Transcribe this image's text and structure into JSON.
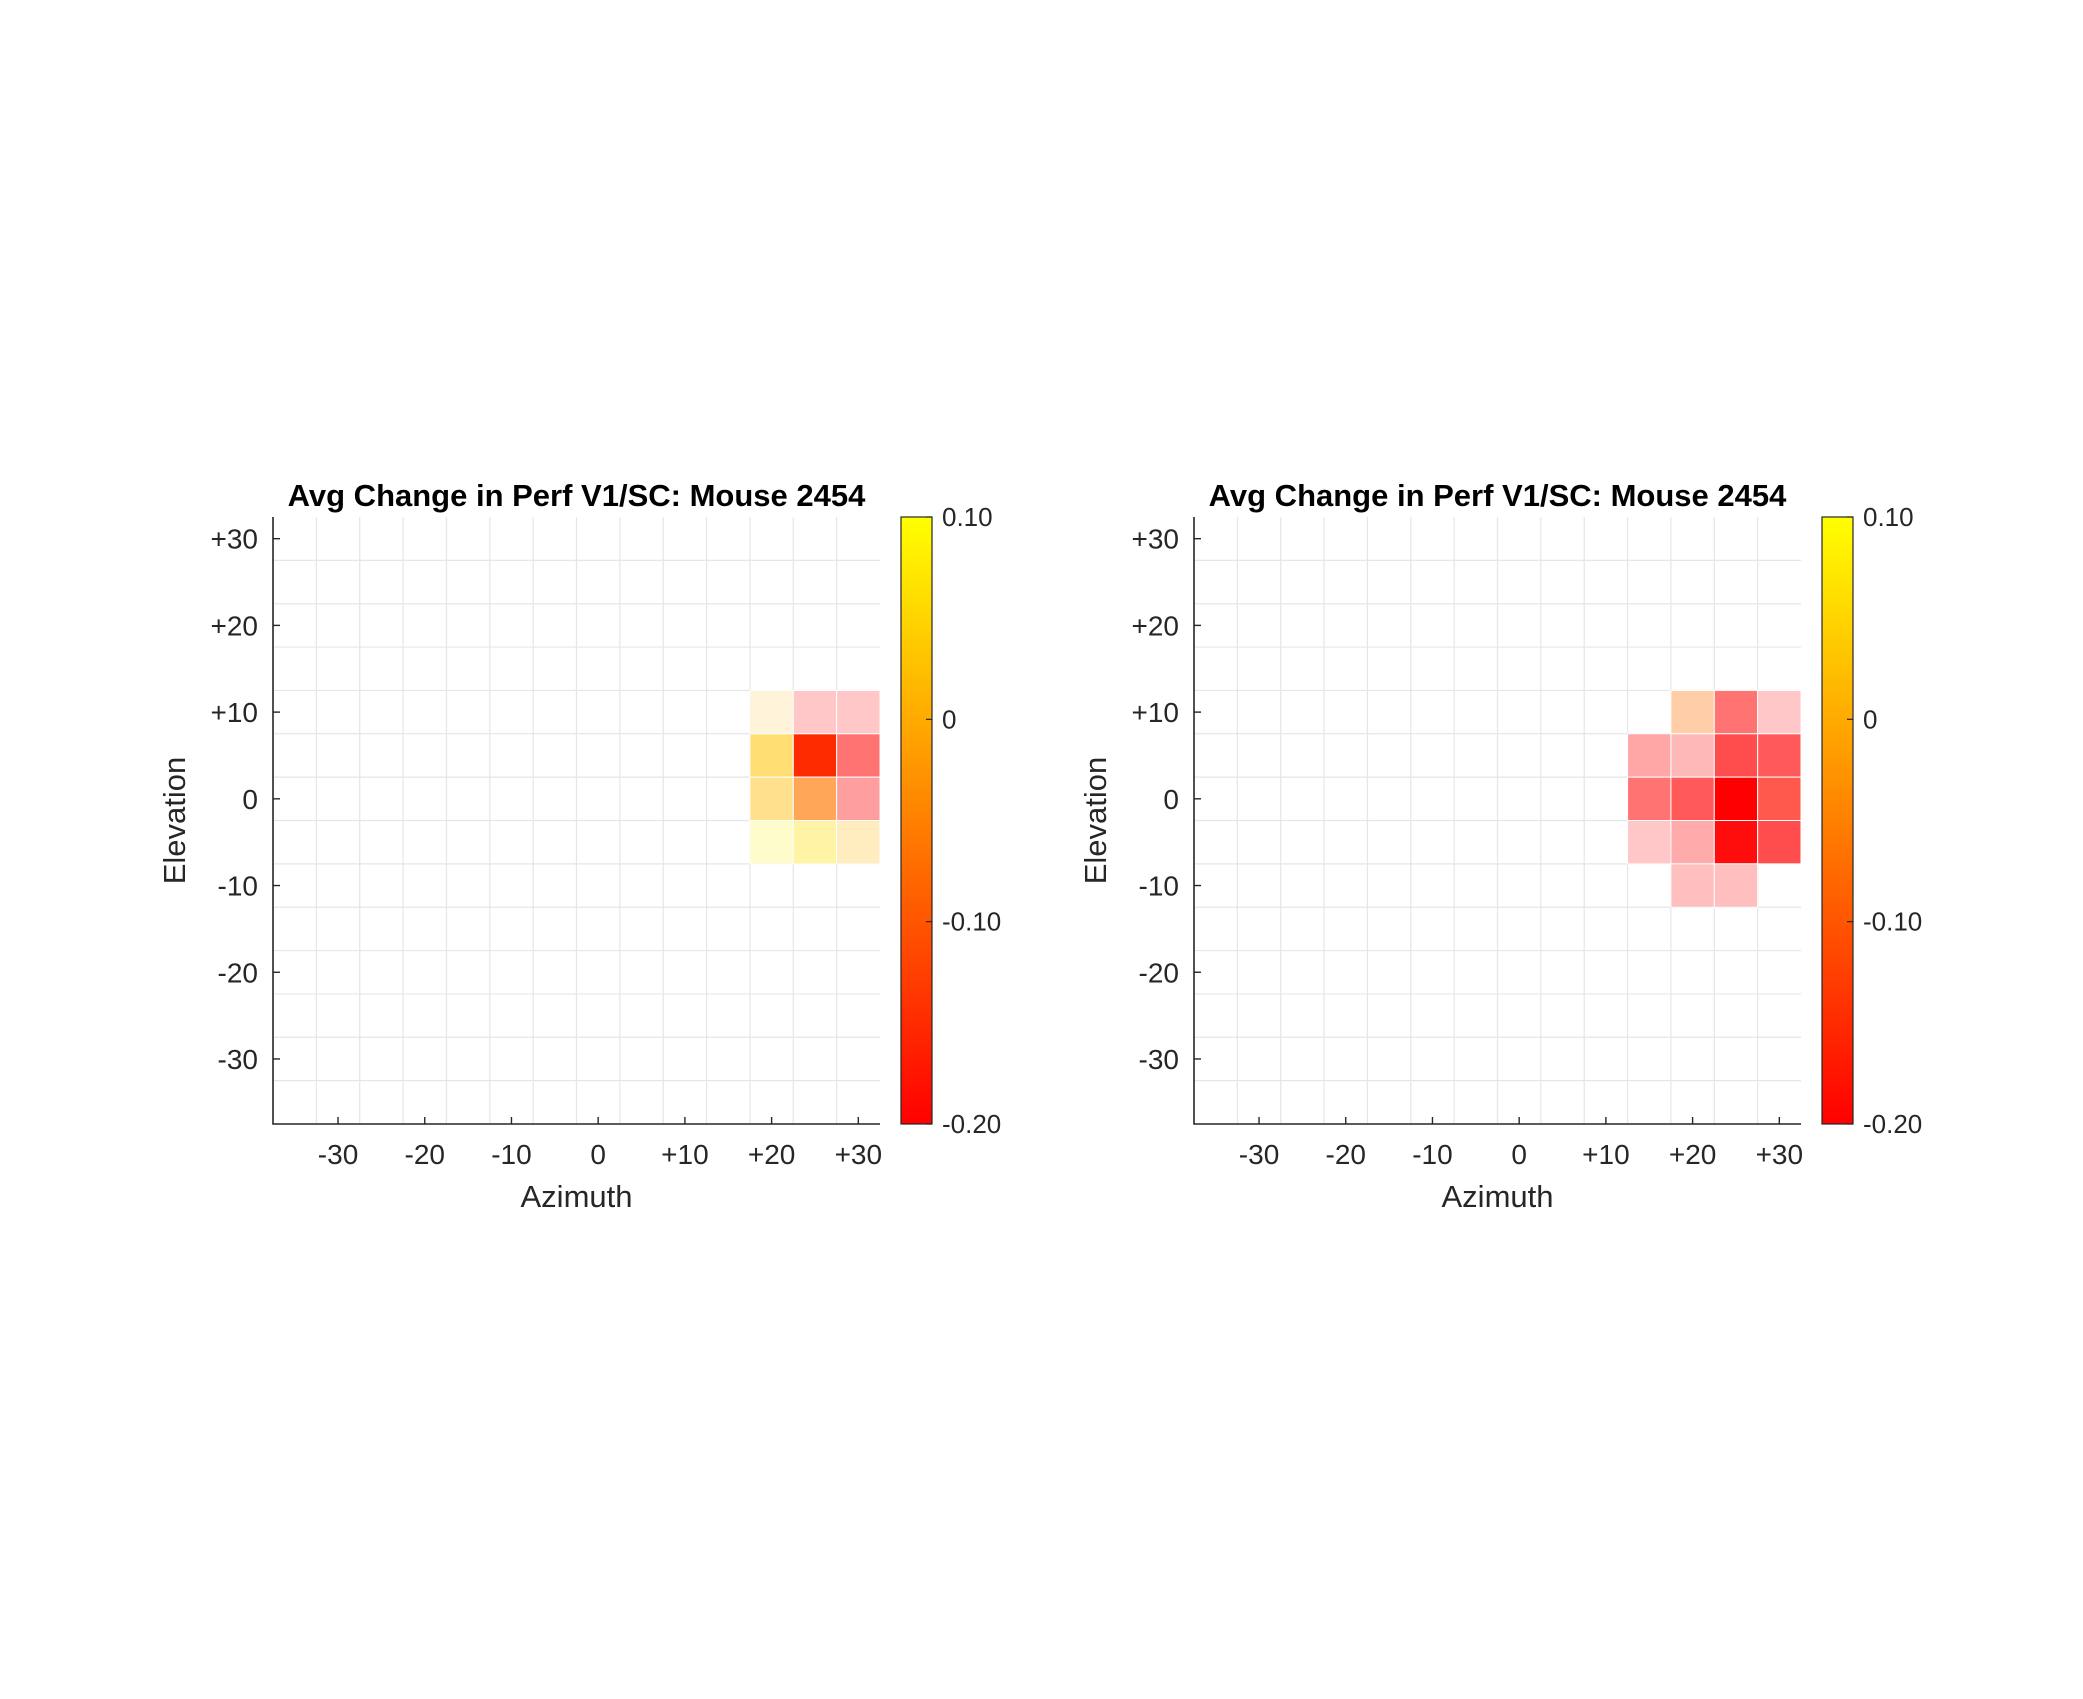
{
  "colors": {
    "grid": "#e6e6e6",
    "axis": "#262626",
    "colormap_stops": [
      "#ff0000",
      "#ff8000",
      "#ffff00"
    ]
  },
  "chart_data": [
    {
      "type": "heatmap",
      "title": "Avg Change in Perf V1/SC: Mouse 2454",
      "xlabel": "Azimuth",
      "ylabel": "Elevation",
      "xlim": [
        -37.5,
        32.5
      ],
      "ylim": [
        -37.5,
        32.5
      ],
      "cell_size": 5,
      "x_ticks": [
        -30,
        -20,
        -10,
        0,
        10,
        20,
        30
      ],
      "x_tick_labels": [
        "-30",
        "-20",
        "-10",
        "0",
        "+10",
        "+20",
        "+30"
      ],
      "y_ticks": [
        30,
        20,
        10,
        0,
        -10,
        -20,
        -30
      ],
      "y_tick_labels": [
        "+30",
        "+20",
        "+10",
        "0",
        "-10",
        "-20",
        "-30"
      ],
      "colorbar": {
        "min": -0.2,
        "max": 0.1,
        "ticks": [
          0.1,
          0,
          -0.1,
          -0.2
        ],
        "tick_labels": [
          "0.10",
          "0",
          "-0.10",
          "-0.20"
        ]
      },
      "grid": true,
      "cells": [
        {
          "x": 20,
          "y": 10,
          "value": 0.01,
          "alpha": 0.15
        },
        {
          "x": 25,
          "y": 10,
          "value": -0.2,
          "alpha": 0.22
        },
        {
          "x": 30,
          "y": 10,
          "value": -0.2,
          "alpha": 0.22
        },
        {
          "x": 20,
          "y": 5,
          "value": 0.03,
          "alpha": 0.55
        },
        {
          "x": 25,
          "y": 5,
          "value": -0.15,
          "alpha": 1.0
        },
        {
          "x": 30,
          "y": 5,
          "value": -0.2,
          "alpha": 0.55
        },
        {
          "x": 20,
          "y": 0,
          "value": 0.02,
          "alpha": 0.45
        },
        {
          "x": 25,
          "y": 0,
          "value": -0.06,
          "alpha": 0.65
        },
        {
          "x": 30,
          "y": 0,
          "value": -0.2,
          "alpha": 0.38
        },
        {
          "x": 20,
          "y": -5,
          "value": 0.08,
          "alpha": 0.2
        },
        {
          "x": 25,
          "y": -5,
          "value": 0.06,
          "alpha": 0.35
        },
        {
          "x": 30,
          "y": -5,
          "value": 0.01,
          "alpha": 0.25
        }
      ]
    },
    {
      "type": "heatmap",
      "title": "Avg Change in Perf V1/SC: Mouse 2454",
      "xlabel": "Azimuth",
      "ylabel": "Elevation",
      "xlim": [
        -37.5,
        32.5
      ],
      "ylim": [
        -37.5,
        32.5
      ],
      "cell_size": 5,
      "x_ticks": [
        -30,
        -20,
        -10,
        0,
        10,
        20,
        30
      ],
      "x_tick_labels": [
        "-30",
        "-20",
        "-10",
        "0",
        "+10",
        "+20",
        "+30"
      ],
      "y_ticks": [
        30,
        20,
        10,
        0,
        -10,
        -20,
        -30
      ],
      "y_tick_labels": [
        "+30",
        "+20",
        "+10",
        "0",
        "-10",
        "-20",
        "-30"
      ],
      "colorbar": {
        "min": -0.2,
        "max": 0.1,
        "ticks": [
          0.1,
          0,
          -0.1,
          -0.2
        ],
        "tick_labels": [
          "0.10",
          "0",
          "-0.10",
          "-0.20"
        ]
      },
      "grid": true,
      "cells": [
        {
          "x": 20,
          "y": 10,
          "value": -0.07,
          "alpha": 0.35
        },
        {
          "x": 25,
          "y": 10,
          "value": -0.2,
          "alpha": 0.55
        },
        {
          "x": 30,
          "y": 10,
          "value": -0.2,
          "alpha": 0.22
        },
        {
          "x": 15,
          "y": 5,
          "value": -0.2,
          "alpha": 0.35
        },
        {
          "x": 20,
          "y": 5,
          "value": -0.2,
          "alpha": 0.28
        },
        {
          "x": 25,
          "y": 5,
          "value": -0.2,
          "alpha": 0.7
        },
        {
          "x": 30,
          "y": 5,
          "value": -0.2,
          "alpha": 0.65
        },
        {
          "x": 15,
          "y": 0,
          "value": -0.2,
          "alpha": 0.55
        },
        {
          "x": 20,
          "y": 0,
          "value": -0.2,
          "alpha": 0.65
        },
        {
          "x": 25,
          "y": 0,
          "value": -0.2,
          "alpha": 1.0
        },
        {
          "x": 30,
          "y": 0,
          "value": -0.18,
          "alpha": 0.7
        },
        {
          "x": 15,
          "y": -5,
          "value": -0.2,
          "alpha": 0.22
        },
        {
          "x": 20,
          "y": -5,
          "value": -0.2,
          "alpha": 0.33
        },
        {
          "x": 25,
          "y": -5,
          "value": -0.2,
          "alpha": 0.95
        },
        {
          "x": 30,
          "y": -5,
          "value": -0.2,
          "alpha": 0.7
        },
        {
          "x": 20,
          "y": -10,
          "value": -0.2,
          "alpha": 0.25
        },
        {
          "x": 25,
          "y": -10,
          "value": -0.2,
          "alpha": 0.25
        }
      ]
    }
  ]
}
